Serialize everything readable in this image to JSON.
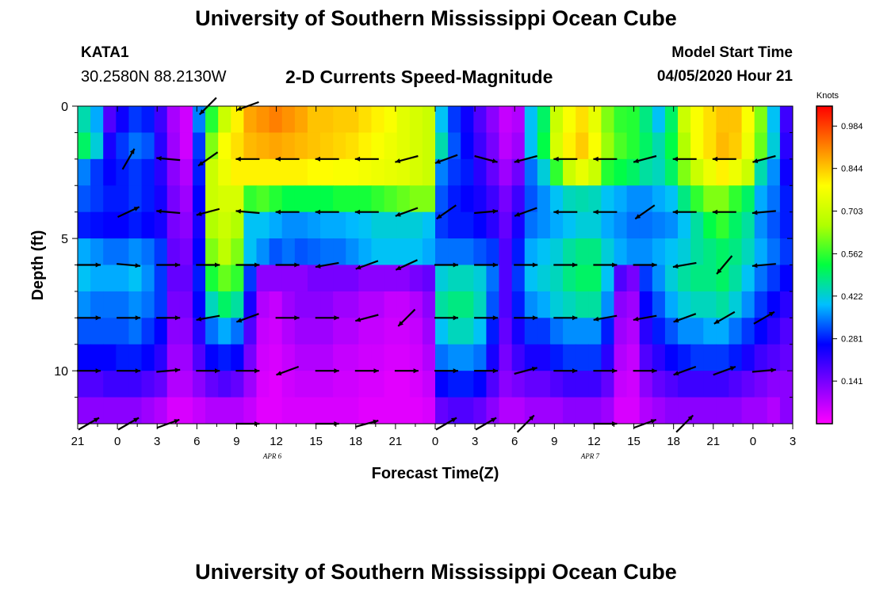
{
  "header": {
    "title": "University of Southern Mississippi Ocean Cube",
    "station_id": "KATA1",
    "coordinates": "30.2580N 88.2130W",
    "subtitle": "2-D Currents Speed-Magnitude",
    "model_start_label": "Model Start Time",
    "model_start_value": "04/05/2020 Hour 21"
  },
  "footer": {
    "title": "University of Southern Mississippi Ocean Cube"
  },
  "chart_data": {
    "type": "heatmap",
    "title": "2-D Currents Speed-Magnitude",
    "xlabel": "Forecast Time(Z)",
    "ylabel": "Depth (ft)",
    "x_tick_labels": [
      "21",
      "0",
      "3",
      "6",
      "9",
      "12",
      "15",
      "18",
      "21",
      "0",
      "3",
      "6",
      "9",
      "12",
      "15",
      "18",
      "21",
      "0",
      "3"
    ],
    "x_hours": [
      0,
      3,
      6,
      9,
      12,
      15,
      18,
      21,
      24,
      27,
      30,
      33,
      36,
      39,
      42,
      45,
      48,
      51,
      54
    ],
    "xlim": [
      0,
      54
    ],
    "date_labels": [
      {
        "text": "APR 6",
        "hour": 15
      },
      {
        "text": "APR 7",
        "hour": 39
      }
    ],
    "y_tick_labels": [
      "0",
      "5",
      "10"
    ],
    "y_ticks": [
      0,
      5,
      10
    ],
    "ylim": [
      0,
      12
    ],
    "colorbar": {
      "label": "Knots",
      "tick_labels": [
        "0.984",
        "0.844",
        "0.703",
        "0.562",
        "0.422",
        "0.281",
        "0.141"
      ],
      "ticks": [
        0.984,
        0.844,
        0.703,
        0.562,
        0.422,
        0.281,
        0.141
      ],
      "vmin": 0.0,
      "vmax": 1.05,
      "colors": [
        "#ff00ff",
        "#8000ff",
        "#0000ff",
        "#00bfff",
        "#00ff40",
        "#b0ff00",
        "#ffff00",
        "#ff8000",
        "#ff0000"
      ]
    },
    "depths": [
      0.5,
      1.5,
      2.5,
      3.5,
      4.5,
      5.5,
      6.5,
      7.5,
      8.5,
      9.5,
      10.5,
      11.5
    ],
    "speed_knots": [
      [
        0.45,
        0.38,
        0.18,
        0.25,
        0.3,
        0.28,
        0.2,
        0.09,
        0.05,
        0.35,
        0.55,
        0.7,
        0.8,
        0.88,
        0.9,
        0.92,
        0.9,
        0.88,
        0.85,
        0.85,
        0.84,
        0.84,
        0.82,
        0.8,
        0.78,
        0.74,
        0.72,
        0.7,
        0.4,
        0.3,
        0.25,
        0.18,
        0.12,
        0.06,
        0.08,
        0.4,
        0.5,
        0.7,
        0.78,
        0.82,
        0.75,
        0.62,
        0.56,
        0.55,
        0.48,
        0.4,
        0.5,
        0.7,
        0.78,
        0.82,
        0.85,
        0.85,
        0.78,
        0.62,
        0.4,
        0.2
      ],
      [
        0.5,
        0.42,
        0.24,
        0.3,
        0.34,
        0.32,
        0.22,
        0.1,
        0.05,
        0.3,
        0.62,
        0.78,
        0.82,
        0.86,
        0.87,
        0.88,
        0.87,
        0.86,
        0.85,
        0.84,
        0.83,
        0.82,
        0.8,
        0.78,
        0.76,
        0.74,
        0.72,
        0.7,
        0.45,
        0.32,
        0.26,
        0.2,
        0.14,
        0.07,
        0.1,
        0.4,
        0.52,
        0.72,
        0.8,
        0.84,
        0.78,
        0.64,
        0.58,
        0.55,
        0.5,
        0.45,
        0.52,
        0.66,
        0.78,
        0.82,
        0.86,
        0.84,
        0.76,
        0.6,
        0.42,
        0.22
      ],
      [
        0.35,
        0.3,
        0.26,
        0.28,
        0.3,
        0.28,
        0.22,
        0.12,
        0.08,
        0.28,
        0.7,
        0.76,
        0.8,
        0.8,
        0.8,
        0.8,
        0.8,
        0.8,
        0.79,
        0.79,
        0.78,
        0.78,
        0.77,
        0.76,
        0.75,
        0.74,
        0.72,
        0.7,
        0.35,
        0.3,
        0.28,
        0.22,
        0.16,
        0.1,
        0.15,
        0.34,
        0.42,
        0.56,
        0.7,
        0.75,
        0.7,
        0.55,
        0.52,
        0.5,
        0.46,
        0.44,
        0.5,
        0.62,
        0.7,
        0.76,
        0.8,
        0.76,
        0.7,
        0.45,
        0.36,
        0.25
      ],
      [
        0.32,
        0.3,
        0.28,
        0.28,
        0.3,
        0.28,
        0.24,
        0.14,
        0.1,
        0.26,
        0.7,
        0.72,
        0.72,
        0.56,
        0.58,
        0.55,
        0.52,
        0.52,
        0.52,
        0.52,
        0.54,
        0.54,
        0.54,
        0.56,
        0.58,
        0.6,
        0.62,
        0.62,
        0.32,
        0.28,
        0.26,
        0.24,
        0.2,
        0.14,
        0.2,
        0.32,
        0.36,
        0.4,
        0.44,
        0.45,
        0.44,
        0.4,
        0.38,
        0.36,
        0.36,
        0.38,
        0.4,
        0.48,
        0.56,
        0.62,
        0.62,
        0.56,
        0.5,
        0.38,
        0.34,
        0.28
      ],
      [
        0.28,
        0.27,
        0.26,
        0.26,
        0.28,
        0.26,
        0.24,
        0.14,
        0.12,
        0.24,
        0.66,
        0.7,
        0.66,
        0.4,
        0.4,
        0.38,
        0.36,
        0.36,
        0.37,
        0.38,
        0.38,
        0.39,
        0.4,
        0.42,
        0.42,
        0.42,
        0.42,
        0.4,
        0.3,
        0.28,
        0.28,
        0.26,
        0.22,
        0.16,
        0.24,
        0.34,
        0.36,
        0.38,
        0.4,
        0.42,
        0.42,
        0.38,
        0.36,
        0.34,
        0.34,
        0.35,
        0.36,
        0.4,
        0.46,
        0.52,
        0.56,
        0.5,
        0.46,
        0.36,
        0.32,
        0.28
      ],
      [
        0.38,
        0.36,
        0.34,
        0.34,
        0.36,
        0.34,
        0.3,
        0.16,
        0.14,
        0.26,
        0.62,
        0.68,
        0.62,
        0.4,
        0.36,
        0.32,
        0.34,
        0.32,
        0.33,
        0.34,
        0.34,
        0.36,
        0.38,
        0.4,
        0.4,
        0.4,
        0.4,
        0.38,
        0.34,
        0.34,
        0.34,
        0.32,
        0.3,
        0.18,
        0.28,
        0.38,
        0.4,
        0.42,
        0.46,
        0.48,
        0.48,
        0.42,
        0.38,
        0.36,
        0.36,
        0.38,
        0.4,
        0.42,
        0.46,
        0.48,
        0.5,
        0.48,
        0.44,
        0.38,
        0.34,
        0.3
      ],
      [
        0.4,
        0.38,
        0.38,
        0.38,
        0.4,
        0.36,
        0.3,
        0.16,
        0.16,
        0.28,
        0.54,
        0.6,
        0.56,
        0.3,
        0.12,
        0.12,
        0.12,
        0.12,
        0.14,
        0.14,
        0.14,
        0.14,
        0.12,
        0.12,
        0.12,
        0.12,
        0.14,
        0.16,
        0.42,
        0.44,
        0.44,
        0.42,
        0.34,
        0.18,
        0.3,
        0.4,
        0.42,
        0.44,
        0.48,
        0.5,
        0.5,
        0.4,
        0.18,
        0.14,
        0.3,
        0.36,
        0.42,
        0.46,
        0.48,
        0.48,
        0.5,
        0.46,
        0.4,
        0.34,
        0.3,
        0.26
      ],
      [
        0.36,
        0.34,
        0.34,
        0.34,
        0.36,
        0.34,
        0.3,
        0.14,
        0.14,
        0.26,
        0.44,
        0.5,
        0.46,
        0.24,
        0.08,
        0.06,
        0.1,
        0.12,
        0.12,
        0.12,
        0.1,
        0.1,
        0.08,
        0.08,
        0.06,
        0.06,
        0.08,
        0.12,
        0.46,
        0.48,
        0.48,
        0.44,
        0.32,
        0.18,
        0.28,
        0.36,
        0.38,
        0.42,
        0.44,
        0.46,
        0.46,
        0.36,
        0.12,
        0.1,
        0.26,
        0.32,
        0.38,
        0.42,
        0.44,
        0.44,
        0.46,
        0.42,
        0.36,
        0.3,
        0.26,
        0.22
      ],
      [
        0.32,
        0.32,
        0.32,
        0.32,
        0.34,
        0.3,
        0.26,
        0.12,
        0.12,
        0.22,
        0.34,
        0.38,
        0.34,
        0.18,
        0.06,
        0.05,
        0.08,
        0.1,
        0.1,
        0.1,
        0.08,
        0.08,
        0.06,
        0.06,
        0.05,
        0.05,
        0.06,
        0.1,
        0.4,
        0.44,
        0.44,
        0.4,
        0.28,
        0.16,
        0.24,
        0.3,
        0.3,
        0.34,
        0.36,
        0.36,
        0.36,
        0.28,
        0.1,
        0.08,
        0.22,
        0.28,
        0.32,
        0.36,
        0.36,
        0.38,
        0.38,
        0.34,
        0.3,
        0.26,
        0.22,
        0.18
      ],
      [
        0.26,
        0.26,
        0.26,
        0.28,
        0.28,
        0.26,
        0.22,
        0.1,
        0.1,
        0.18,
        0.26,
        0.28,
        0.26,
        0.14,
        0.05,
        0.04,
        0.06,
        0.08,
        0.08,
        0.08,
        0.06,
        0.06,
        0.05,
        0.05,
        0.04,
        0.04,
        0.05,
        0.08,
        0.34,
        0.36,
        0.36,
        0.34,
        0.24,
        0.14,
        0.2,
        0.24,
        0.24,
        0.28,
        0.3,
        0.3,
        0.3,
        0.22,
        0.08,
        0.06,
        0.18,
        0.22,
        0.26,
        0.28,
        0.3,
        0.3,
        0.3,
        0.28,
        0.24,
        0.2,
        0.18,
        0.16
      ],
      [
        0.18,
        0.18,
        0.2,
        0.2,
        0.2,
        0.18,
        0.16,
        0.08,
        0.08,
        0.12,
        0.16,
        0.18,
        0.16,
        0.1,
        0.04,
        0.03,
        0.05,
        0.06,
        0.06,
        0.06,
        0.05,
        0.05,
        0.04,
        0.04,
        0.03,
        0.03,
        0.04,
        0.06,
        0.26,
        0.28,
        0.28,
        0.26,
        0.18,
        0.12,
        0.14,
        0.16,
        0.16,
        0.18,
        0.2,
        0.2,
        0.2,
        0.16,
        0.06,
        0.05,
        0.12,
        0.16,
        0.18,
        0.2,
        0.2,
        0.2,
        0.2,
        0.18,
        0.16,
        0.14,
        0.12,
        0.12
      ],
      [
        0.12,
        0.12,
        0.12,
        0.12,
        0.12,
        0.1,
        0.08,
        0.04,
        0.04,
        0.06,
        0.08,
        0.08,
        0.08,
        0.06,
        0.03,
        0.03,
        0.04,
        0.04,
        0.04,
        0.04,
        0.04,
        0.04,
        0.03,
        0.03,
        0.03,
        0.03,
        0.03,
        0.04,
        0.16,
        0.18,
        0.18,
        0.16,
        0.12,
        0.08,
        0.08,
        0.1,
        0.1,
        0.1,
        0.12,
        0.12,
        0.12,
        0.1,
        0.04,
        0.04,
        0.08,
        0.1,
        0.12,
        0.12,
        0.12,
        0.12,
        0.12,
        0.12,
        0.1,
        0.1,
        0.08,
        0.12
      ]
    ],
    "vectors": {
      "hours": [
        0,
        3,
        6,
        9,
        12,
        15,
        18,
        21,
        24,
        27,
        30,
        33,
        36,
        39,
        42,
        45,
        48,
        51,
        54
      ],
      "depths": [
        0,
        2,
        4,
        6,
        8,
        10,
        12
      ],
      "directions_deg": [
        [
          null,
          null,
          null,
          225,
          200,
          null,
          null,
          null,
          null,
          null,
          null,
          null,
          null,
          null,
          null,
          null,
          null,
          null,
          null
        ],
        [
          null,
          60,
          175,
          215,
          180,
          180,
          180,
          180,
          195,
          200,
          345,
          195,
          180,
          180,
          195,
          180,
          180,
          195,
          null
        ],
        [
          null,
          25,
          175,
          195,
          175,
          180,
          180,
          180,
          200,
          215,
          5,
          200,
          180,
          180,
          215,
          180,
          180,
          185,
          null
        ],
        [
          0,
          355,
          0,
          0,
          0,
          0,
          190,
          200,
          205,
          0,
          0,
          0,
          0,
          0,
          0,
          190,
          230,
          185,
          null
        ],
        [
          0,
          0,
          0,
          190,
          200,
          0,
          0,
          195,
          225,
          0,
          0,
          0,
          0,
          190,
          190,
          200,
          210,
          30,
          null
        ],
        [
          0,
          0,
          5,
          0,
          0,
          200,
          0,
          0,
          0,
          0,
          0,
          15,
          0,
          0,
          0,
          200,
          20,
          5,
          null
        ],
        [
          30,
          30,
          20,
          null,
          0,
          null,
          0,
          15,
          null,
          30,
          30,
          45,
          null,
          0,
          20,
          45,
          null,
          null,
          null
        ]
      ]
    }
  }
}
